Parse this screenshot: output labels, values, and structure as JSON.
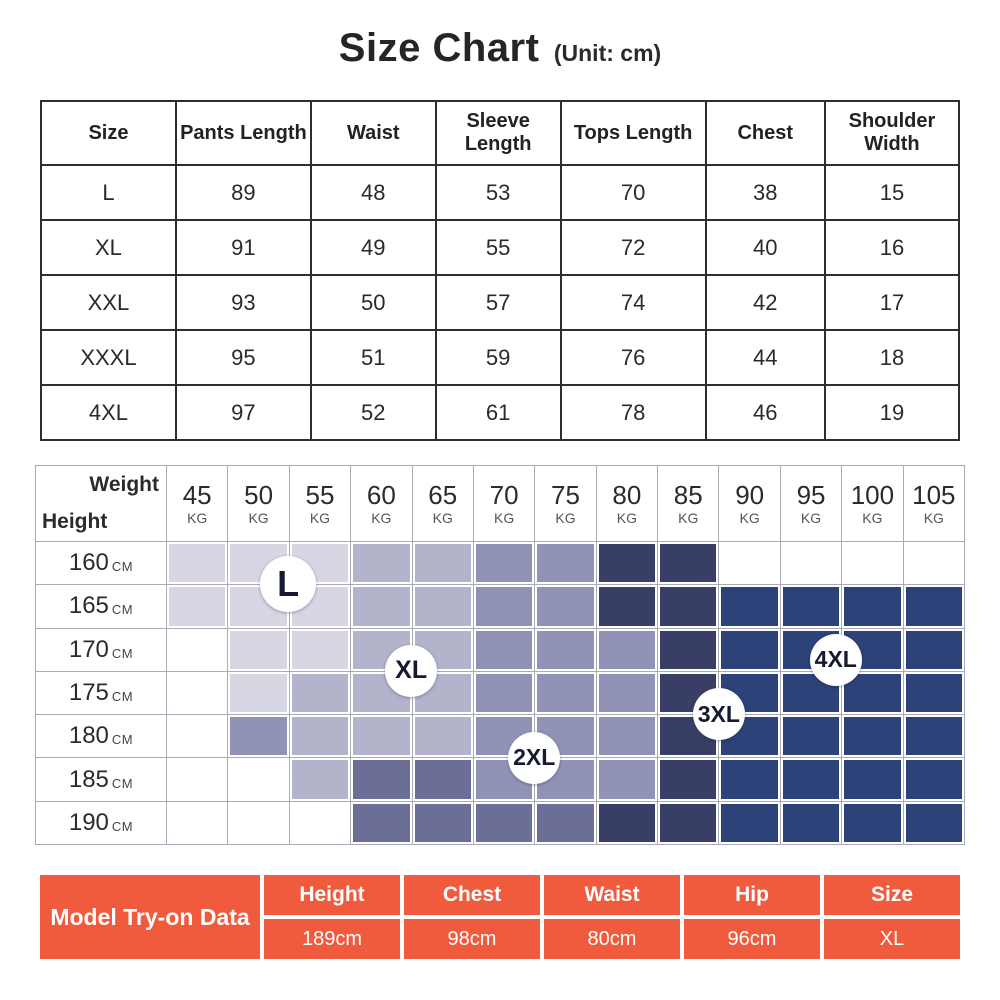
{
  "title": {
    "main": "Size Chart",
    "unit": "(Unit: cm)"
  },
  "size_table": {
    "columns": [
      "Size",
      "Pants Length",
      "Waist",
      "Sleeve Length",
      "Tops Length",
      "Chest",
      "Shoulder Width"
    ],
    "rows": [
      [
        "L",
        "89",
        "48",
        "53",
        "70",
        "38",
        "15"
      ],
      [
        "XL",
        "91",
        "49",
        "55",
        "72",
        "40",
        "16"
      ],
      [
        "XXL",
        "93",
        "50",
        "57",
        "74",
        "42",
        "17"
      ],
      [
        "XXXL",
        "95",
        "51",
        "59",
        "76",
        "44",
        "18"
      ],
      [
        "4XL",
        "97",
        "52",
        "61",
        "78",
        "46",
        "19"
      ]
    ]
  },
  "weight_grid": {
    "corner": {
      "top_label": "Weight",
      "bottom_label": "Height"
    },
    "weights": [
      "45",
      "50",
      "55",
      "60",
      "65",
      "70",
      "75",
      "80",
      "85",
      "90",
      "95",
      "100",
      "105"
    ],
    "weight_unit": "KG",
    "heights": [
      "160",
      "165",
      "170",
      "175",
      "180",
      "185",
      "190"
    ],
    "height_unit": "CM",
    "tones": {
      "W": "#ffffff",
      "A": "#d6d7e2",
      "B": "#b2b4cb",
      "C": "#9093b6",
      "F": "#6b6e96",
      "D": "#383e66",
      "E": "#2c4278"
    },
    "cells": [
      "AAABBCCDDWWWW",
      "AAABBCCDDEEEE",
      "WAABBCCCDEEEE",
      "WABBBCCCDEEEE",
      "WCBBBCCCDEEEE",
      "WWBFFCCCDEEEE",
      "WWWFFFFDDEEEE"
    ],
    "labels": [
      {
        "text": "L",
        "col": 2,
        "row": 1,
        "diameter": 56,
        "font": 36
      },
      {
        "text": "XL",
        "col": 4,
        "row": 3,
        "diameter": 52,
        "font": 25
      },
      {
        "text": "2XL",
        "col": 6,
        "row": 5,
        "diameter": 52,
        "font": 23
      },
      {
        "text": "3XL",
        "col": 9,
        "row": 4,
        "diameter": 52,
        "font": 23
      },
      {
        "text": "4XL",
        "col": 10.9,
        "row": 2.75,
        "diameter": 52,
        "font": 23
      }
    ]
  },
  "model_table": {
    "header": "Model Try-on Data",
    "accent": "#f15b3d",
    "columns": [
      {
        "label": "Height",
        "value": "189cm"
      },
      {
        "label": "Chest",
        "value": "98cm"
      },
      {
        "label": "Waist",
        "value": "80cm"
      },
      {
        "label": "Hip",
        "value": "96cm"
      },
      {
        "label": "Size",
        "value": "XL"
      }
    ]
  },
  "chart_data": [
    {
      "type": "table",
      "title": "Size Chart (Unit: cm)",
      "columns": [
        "Size",
        "Pants Length",
        "Waist",
        "Sleeve Length",
        "Tops Length",
        "Chest",
        "Shoulder Width"
      ],
      "rows": [
        [
          "L",
          89,
          48,
          53,
          70,
          38,
          15
        ],
        [
          "XL",
          91,
          49,
          55,
          72,
          40,
          16
        ],
        [
          "XXL",
          93,
          50,
          57,
          74,
          42,
          17
        ],
        [
          "XXXL",
          95,
          51,
          59,
          76,
          44,
          18
        ],
        [
          "4XL",
          97,
          52,
          61,
          78,
          46,
          19
        ]
      ]
    },
    {
      "type": "heatmap",
      "title": "Recommended size by height and weight",
      "x": [
        45,
        50,
        55,
        60,
        65,
        70,
        75,
        80,
        85,
        90,
        95,
        100,
        105
      ],
      "x_unit": "KG",
      "xlabel": "Weight",
      "y": [
        160,
        165,
        170,
        175,
        180,
        185,
        190
      ],
      "y_unit": "CM",
      "ylabel": "Height",
      "legend": [
        "L",
        "XL",
        "2XL",
        "3XL",
        "4XL"
      ],
      "values": [
        [
          "L",
          "L",
          "L",
          "XL",
          "XL",
          "2XL",
          "2XL",
          "3XL",
          "3XL",
          "",
          "",
          "",
          ""
        ],
        [
          "L",
          "L",
          "L",
          "XL",
          "XL",
          "2XL",
          "2XL",
          "3XL",
          "3XL",
          "4XL",
          "4XL",
          "4XL",
          "4XL"
        ],
        [
          "",
          "L",
          "L",
          "XL",
          "XL",
          "2XL",
          "2XL",
          "2XL",
          "3XL",
          "4XL",
          "4XL",
          "4XL",
          "4XL"
        ],
        [
          "",
          "L",
          "XL",
          "XL",
          "XL",
          "2XL",
          "2XL",
          "2XL",
          "3XL",
          "4XL",
          "4XL",
          "4XL",
          "4XL"
        ],
        [
          "",
          "2XL",
          "XL",
          "XL",
          "XL",
          "2XL",
          "2XL",
          "2XL",
          "3XL",
          "4XL",
          "4XL",
          "4XL",
          "4XL"
        ],
        [
          "",
          "",
          "XL",
          "2XL",
          "2XL",
          "2XL",
          "2XL",
          "2XL",
          "3XL",
          "4XL",
          "4XL",
          "4XL",
          "4XL"
        ],
        [
          "",
          "",
          "",
          "2XL",
          "2XL",
          "2XL",
          "2XL",
          "3XL",
          "3XL",
          "4XL",
          "4XL",
          "4XL",
          "4XL"
        ]
      ]
    },
    {
      "type": "table",
      "title": "Model Try-on Data",
      "columns": [
        "Height",
        "Chest",
        "Waist",
        "Hip",
        "Size"
      ],
      "rows": [
        [
          "189cm",
          "98cm",
          "80cm",
          "96cm",
          "XL"
        ]
      ]
    }
  ]
}
